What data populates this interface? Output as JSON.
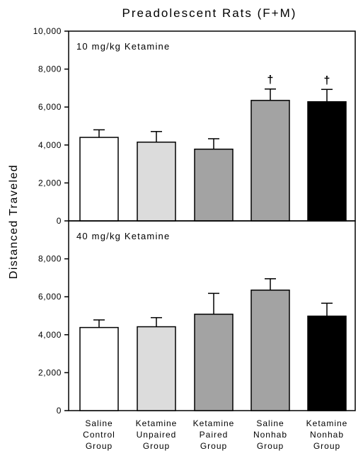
{
  "chart_data": {
    "type": "bar",
    "title": "Preadolescent Rats (F+M)",
    "ylabel": "Distanced Traveled",
    "categories": [
      [
        "Saline",
        "Control",
        "Group"
      ],
      [
        "Ketamine",
        "Unpaired",
        "Group"
      ],
      [
        "Ketamine",
        "Paired",
        "Group"
      ],
      [
        "Saline",
        "Nonhab",
        "Group"
      ],
      [
        "Ketamine",
        "Nonhab",
        "Group"
      ]
    ],
    "bar_colors": [
      "#ffffff",
      "#dcdcdc",
      "#a3a3a3",
      "#a3a3a3",
      "#000000"
    ],
    "panels": [
      {
        "label": "10 mg/kg Ketamine",
        "ylim": [
          0,
          10000
        ],
        "ticks": [
          0,
          2000,
          4000,
          6000,
          8000,
          10000
        ],
        "tick_labels": [
          "0",
          "2,000",
          "4,000",
          "6,000",
          "8,000",
          "10,000"
        ],
        "values": [
          4400,
          4150,
          3780,
          6350,
          6280
        ],
        "errors": [
          400,
          560,
          550,
          600,
          650
        ],
        "markers": [
          "",
          "",
          "",
          "†",
          "†"
        ]
      },
      {
        "label": "40 mg/kg Ketamine",
        "ylim": [
          0,
          10000
        ],
        "ticks": [
          0,
          2000,
          4000,
          6000,
          8000
        ],
        "tick_labels": [
          "0",
          "2,000",
          "4,000",
          "6,000",
          "8,000"
        ],
        "values": [
          4380,
          4420,
          5080,
          6350,
          4980
        ],
        "errors": [
          400,
          480,
          1100,
          600,
          680
        ],
        "markers": [
          "",
          "",
          "",
          "",
          ""
        ]
      }
    ]
  }
}
